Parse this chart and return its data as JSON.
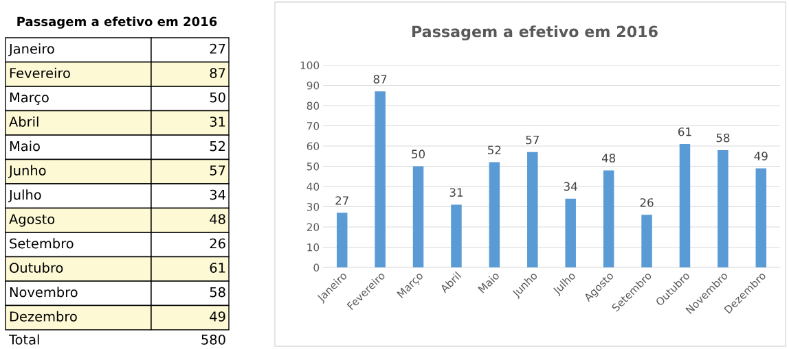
{
  "chart_data": [
    {
      "type": "other",
      "title": "Passagem a efetivo em 2016",
      "categories": [
        "Janeiro",
        "Fevereiro",
        "Março",
        "Abril",
        "Maio",
        "Junho",
        "Julho",
        "Agosto",
        "Setembro",
        "Outubro",
        "Novembro",
        "Dezembro"
      ],
      "values": [
        27,
        87,
        50,
        31,
        52,
        57,
        34,
        48,
        26,
        61,
        58,
        49
      ],
      "data_labels": true,
      "annotations": [
        "Total",
        "580"
      ]
    },
    {
      "type": "bar",
      "title": "Passagem a efetivo em 2016",
      "categories": [
        "Janeiro",
        "Fevereiro",
        "Março",
        "Abril",
        "Maio",
        "Junho",
        "Julho",
        "Agosto",
        "Setembro",
        "Outubro",
        "Novembro",
        "Dezembro"
      ],
      "values": [
        27,
        87,
        50,
        31,
        52,
        57,
        34,
        48,
        26,
        61,
        58,
        49
      ],
      "color": "#5b9bd5",
      "ylim": [
        0,
        100
      ],
      "yticks": [
        0,
        10,
        20,
        30,
        40,
        50,
        60,
        70,
        80,
        90,
        100
      ],
      "grid": "y",
      "data_labels": true,
      "legend": false
    }
  ]
}
